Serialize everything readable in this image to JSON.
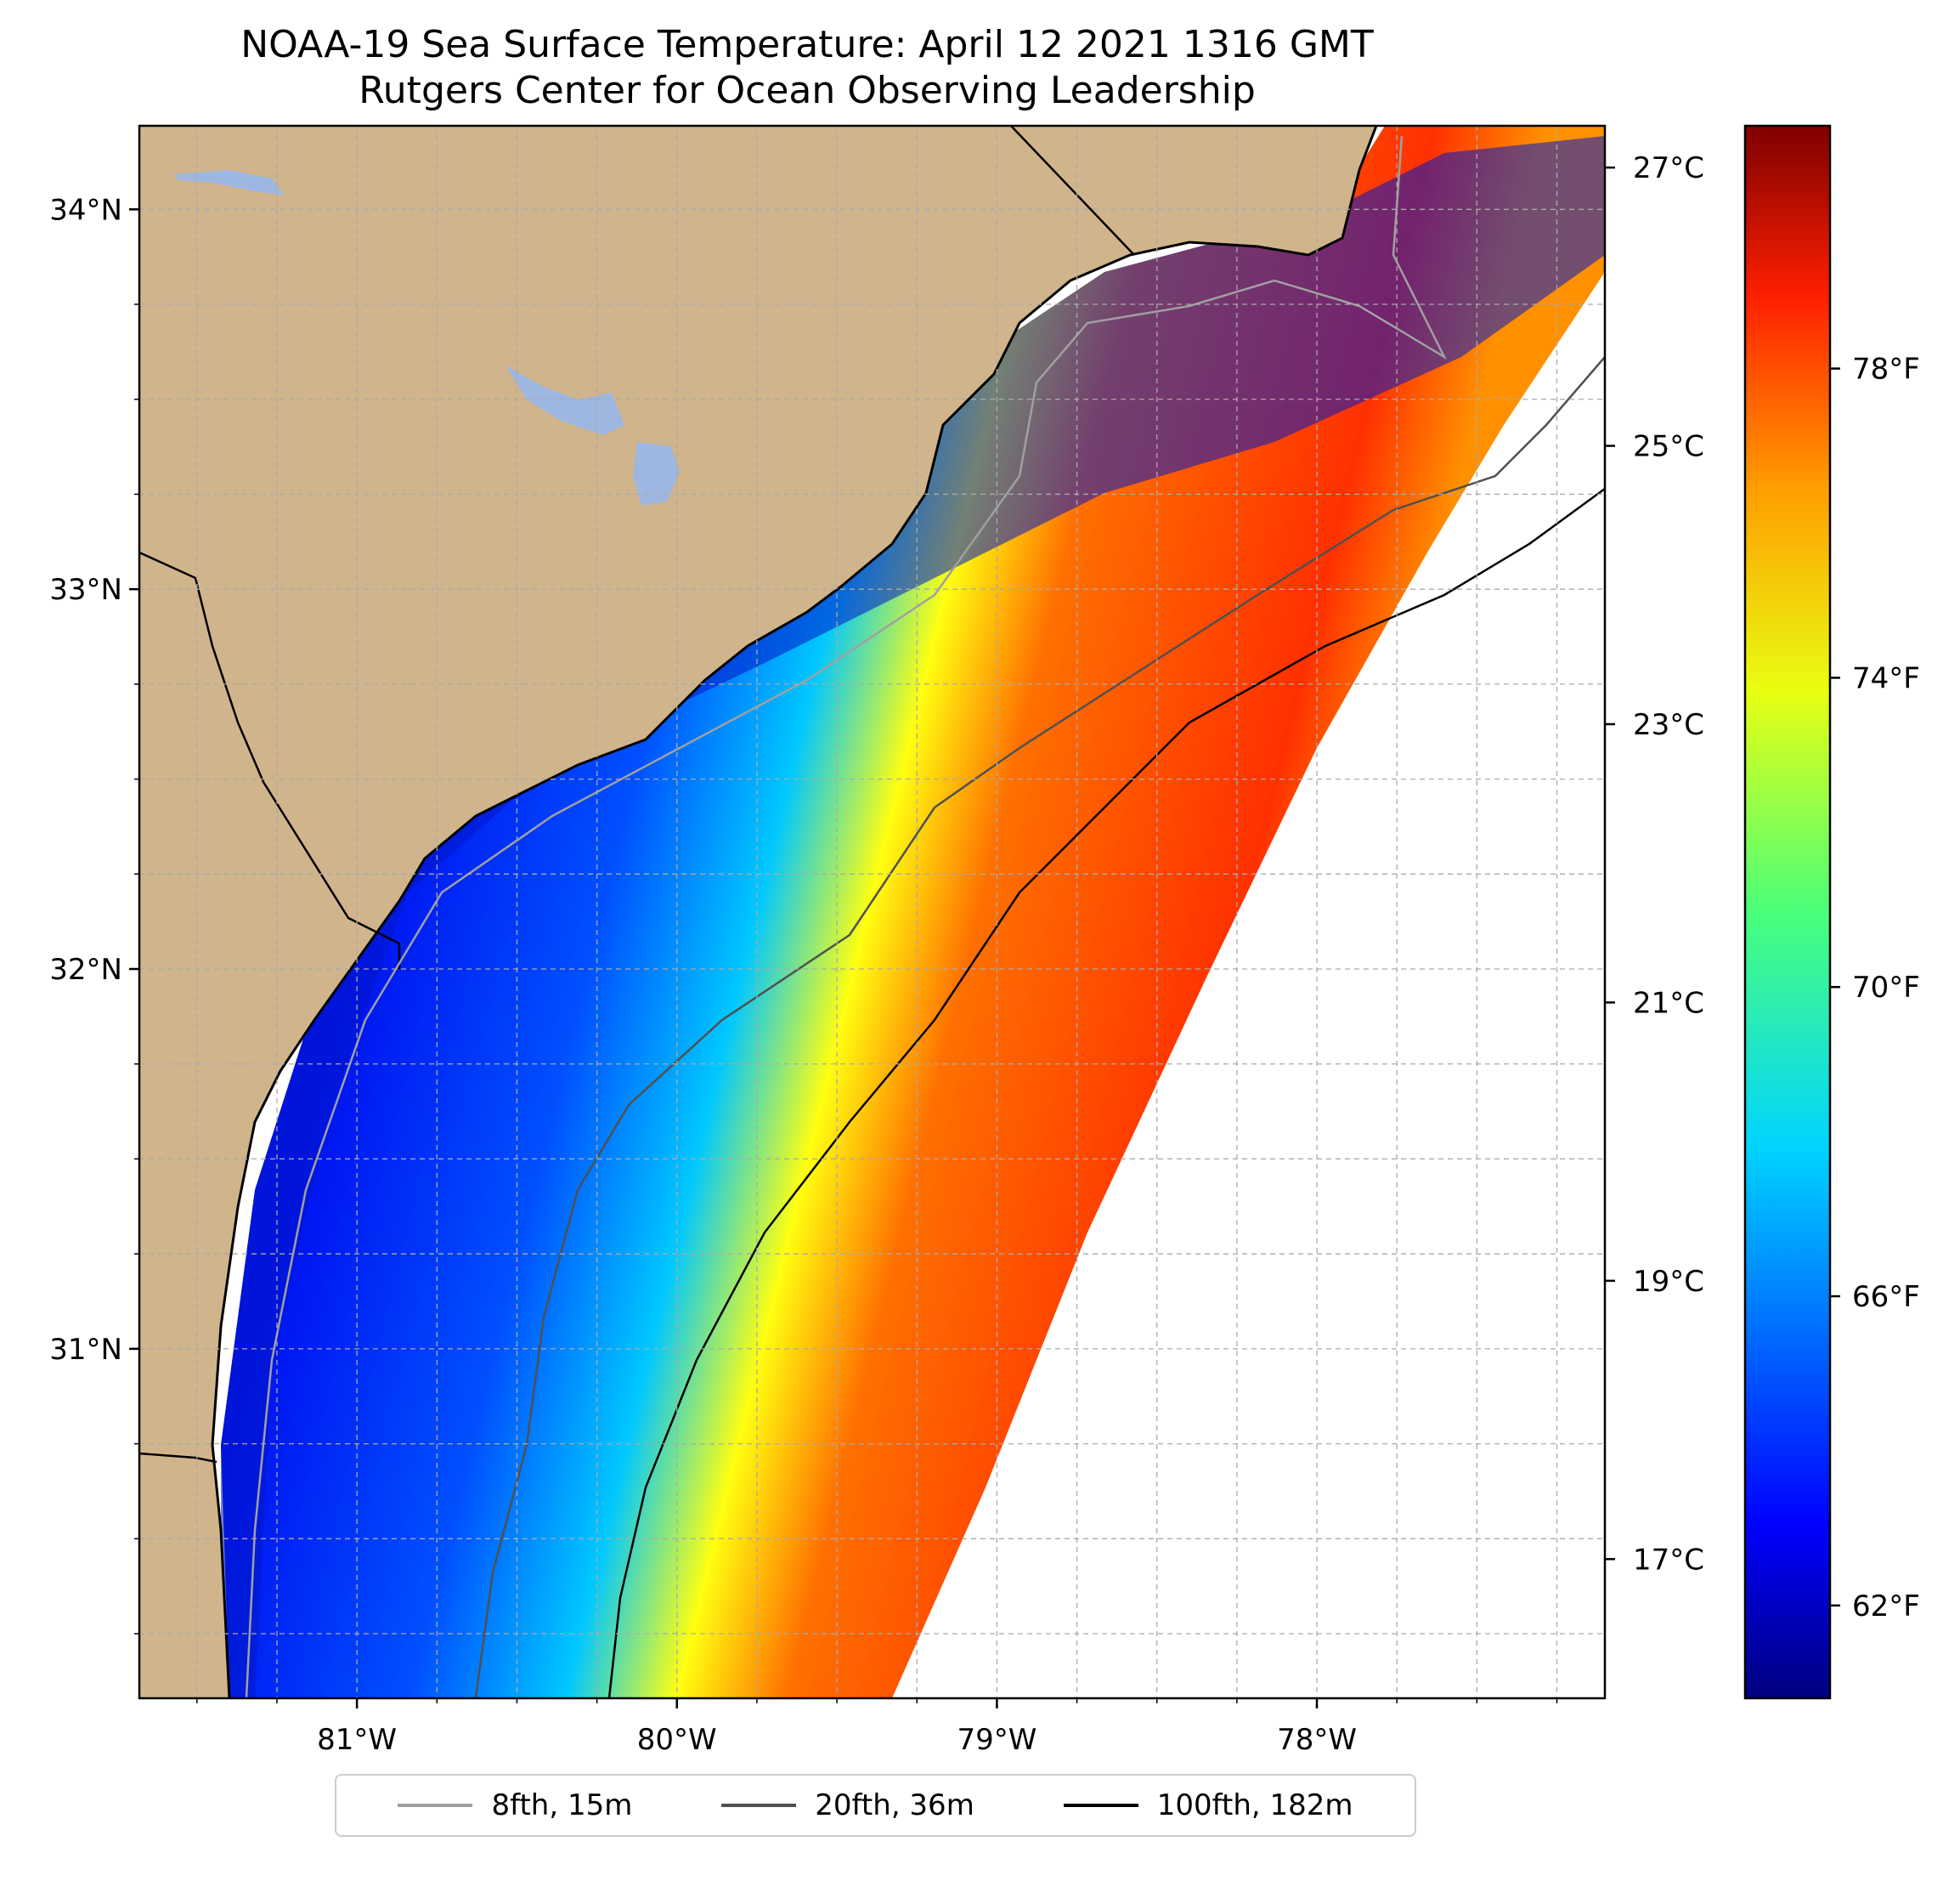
{
  "title": "NOAA-19 Sea Surface Temperature: April 12 2021 1316 GMT",
  "subtitle": "Rutgers Center for Ocean Observing Leadership",
  "map": {
    "lon_ticks": [
      {
        "lon": -81,
        "label": "81°W"
      },
      {
        "lon": -80,
        "label": "80°W"
      },
      {
        "lon": -79,
        "label": "79°W"
      },
      {
        "lon": -78,
        "label": "78°W"
      }
    ],
    "lat_ticks": [
      {
        "lat": 34,
        "label": "34°N"
      },
      {
        "lat": 33,
        "label": "33°N"
      },
      {
        "lat": 32,
        "label": "32°N"
      },
      {
        "lat": 31,
        "label": "31°N"
      }
    ],
    "lon_range": [
      -81.68,
      -77.1
    ],
    "lat_range": [
      30.08,
      34.22
    ],
    "land_color": "#d0b48c",
    "lake_color": "#9db7e0"
  },
  "colorbar": {
    "celsius_ticks": [
      {
        "value": 27,
        "label": "27°C"
      },
      {
        "value": 25,
        "label": "25°C"
      },
      {
        "value": 23,
        "label": "23°C"
      },
      {
        "value": 21,
        "label": "21°C"
      },
      {
        "value": 19,
        "label": "19°C"
      },
      {
        "value": 17,
        "label": "17°C"
      }
    ],
    "fahrenheit_ticks": [
      {
        "value": 78,
        "label": "78°F"
      },
      {
        "value": 74,
        "label": "74°F"
      },
      {
        "value": 70,
        "label": "70°F"
      },
      {
        "value": 66,
        "label": "66°F"
      },
      {
        "value": 62,
        "label": "62°F"
      }
    ],
    "range_celsius": [
      16.0,
      27.3
    ],
    "colormap": "jet"
  },
  "legend": {
    "items": [
      {
        "label": "8fth, 15m",
        "color": "#a0a0a0"
      },
      {
        "label": "20fth, 36m",
        "color": "#505050"
      },
      {
        "label": "100fth, 182m",
        "color": "#000000"
      }
    ]
  }
}
